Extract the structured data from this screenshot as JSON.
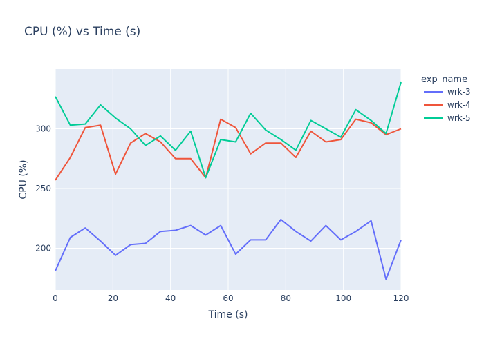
{
  "chart_data": {
    "type": "line",
    "title": "CPU (%) vs Time (s)",
    "xlabel": "Time (s)",
    "ylabel": "CPU (%)",
    "xlim": [
      0,
      120
    ],
    "ylim": [
      165,
      350
    ],
    "x_ticks": [
      0,
      20,
      40,
      60,
      80,
      100,
      120
    ],
    "y_ticks": [
      200,
      250,
      300
    ],
    "grid": true,
    "legend_title": "exp_name",
    "legend_position": "top-right",
    "series": [
      {
        "name": "wrk-3",
        "color": "#636efa",
        "x": [
          0,
          5.2,
          10.4,
          15.7,
          20.9,
          26.1,
          31.3,
          36.5,
          41.7,
          47.0,
          52.2,
          57.4,
          62.6,
          67.8,
          73.0,
          78.3,
          83.5,
          88.7,
          93.9,
          99.1,
          104.3,
          109.6,
          114.8,
          120
        ],
        "y": [
          181,
          209,
          217,
          206,
          194,
          203,
          204,
          214,
          215,
          219,
          211,
          219,
          195,
          207,
          207,
          224,
          214,
          206,
          219,
          207,
          214,
          223,
          174,
          207
        ]
      },
      {
        "name": "wrk-4",
        "color": "#ef553b",
        "x": [
          0,
          5.2,
          10.4,
          15.7,
          20.9,
          26.1,
          31.3,
          36.5,
          41.7,
          47.0,
          52.2,
          57.4,
          62.6,
          67.8,
          73.0,
          78.3,
          83.5,
          88.7,
          93.9,
          99.1,
          104.3,
          109.6,
          114.8,
          120
        ],
        "y": [
          257,
          276,
          301,
          303,
          262,
          288,
          296,
          289,
          275,
          275,
          259,
          308,
          301,
          279,
          288,
          288,
          276,
          298,
          289,
          291,
          308,
          305,
          295,
          300
        ]
      },
      {
        "name": "wrk-5",
        "color": "#00cc96",
        "x": [
          0,
          5.2,
          10.4,
          15.7,
          20.9,
          26.1,
          31.3,
          36.5,
          41.7,
          47.0,
          52.2,
          57.4,
          62.6,
          67.8,
          73.0,
          78.3,
          83.5,
          88.7,
          93.9,
          99.1,
          104.3,
          109.6,
          114.8,
          120
        ],
        "y": [
          327,
          303,
          304,
          320,
          309,
          300,
          286,
          294,
          282,
          298,
          259,
          291,
          289,
          313,
          299,
          291,
          282,
          307,
          300,
          293,
          316,
          307,
          296,
          339
        ]
      }
    ]
  }
}
